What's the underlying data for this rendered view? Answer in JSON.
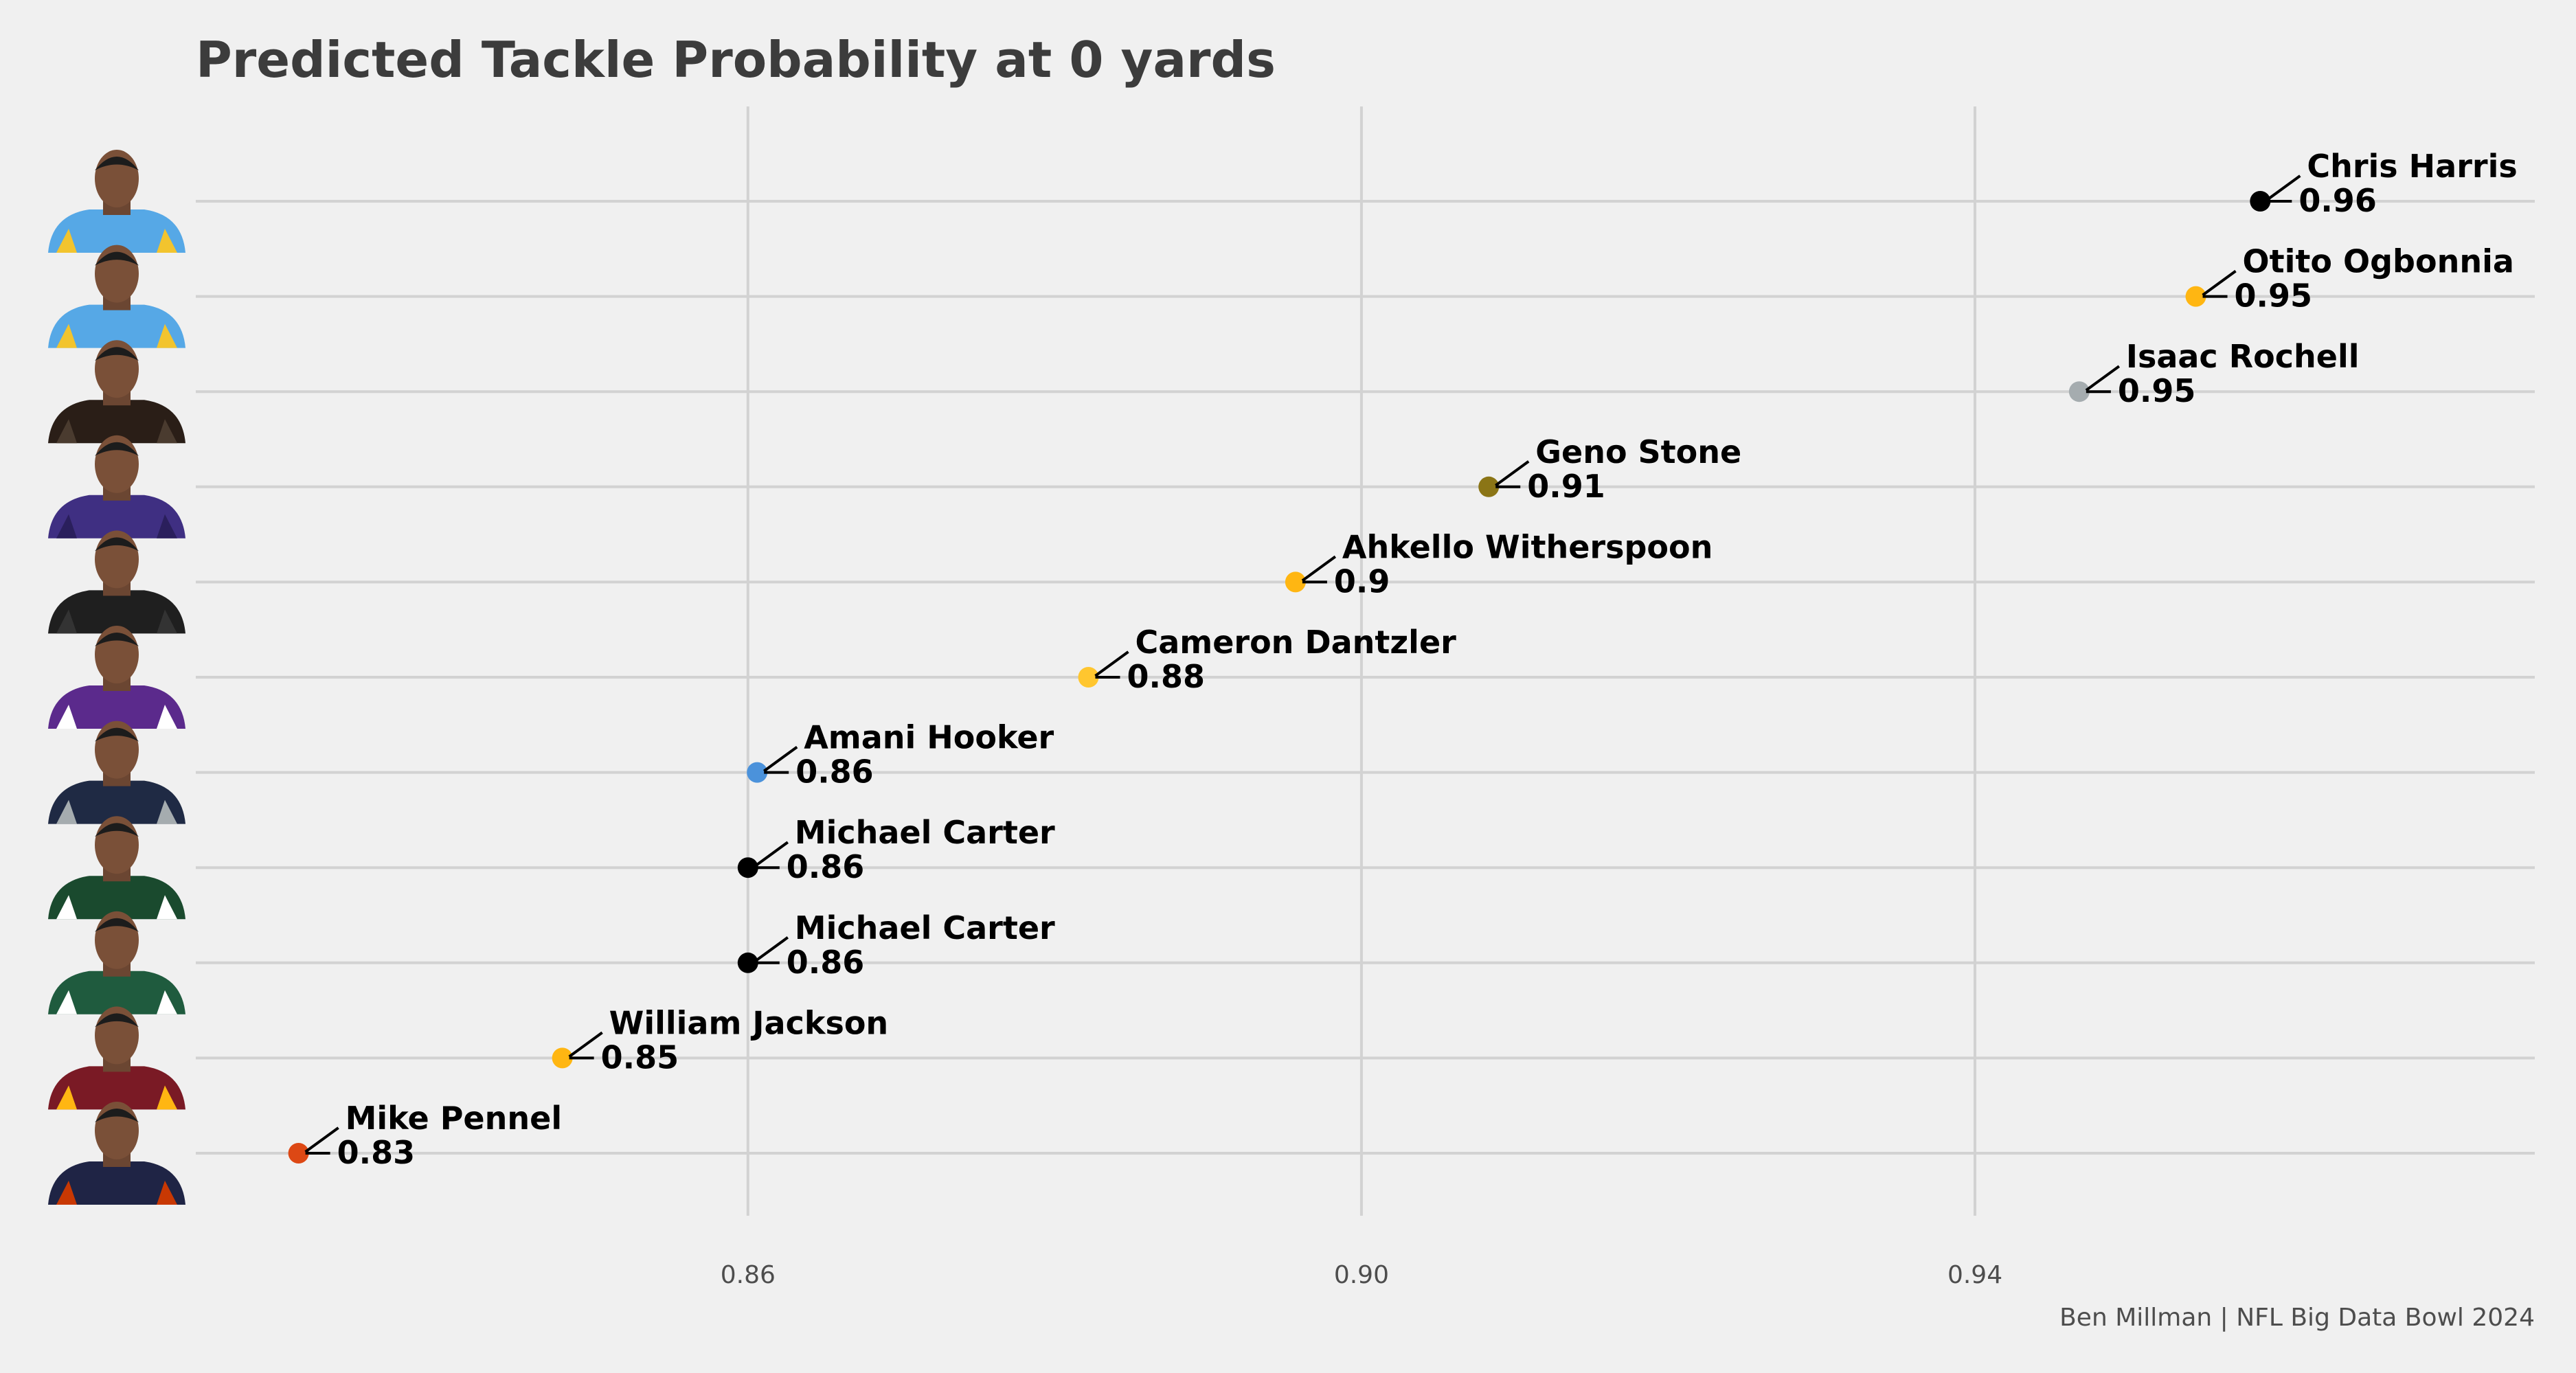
{
  "chart_data": {
    "type": "scatter",
    "title": "Predicted Tackle Probability at 0 yards",
    "xlabel": "",
    "ylabel": "",
    "caption": "Ben Millman | NFL Big Data Bowl 2024",
    "xlim": [
      0.824,
      0.9765
    ],
    "xticks": [
      0.86,
      0.9,
      0.94
    ],
    "xtick_labels": [
      "0.86",
      "0.90",
      "0.94"
    ],
    "grid": true,
    "legend": "none",
    "points": [
      {
        "name": "Chris Harris",
        "x": 0.9586,
        "label": "0.96",
        "color": "#000000",
        "jersey": "#56a8e6",
        "stripe": "#f2c42e"
      },
      {
        "name": "Otito Ogbonnia",
        "x": 0.9544,
        "label": "0.95",
        "color": "#ffb612",
        "jersey": "#56a8e6",
        "stripe": "#f2c42e"
      },
      {
        "name": "Isaac Rochell",
        "x": 0.9468,
        "label": "0.95",
        "color": "#a5acaf",
        "jersey": "#2a1e17",
        "stripe": "#4a3b2f"
      },
      {
        "name": "Geno Stone",
        "x": 0.9083,
        "label": "0.91",
        "color": "#8b7516",
        "jersey": "#3f2f82",
        "stripe": "#2a1f5c"
      },
      {
        "name": "Ahkello Witherspoon",
        "x": 0.8957,
        "label": "0.9",
        "color": "#ffb612",
        "jersey": "#1f1f1f",
        "stripe": "#333333"
      },
      {
        "name": "Cameron Dantzler",
        "x": 0.8822,
        "label": "0.88",
        "color": "#ffc62f",
        "jersey": "#5b2a8c",
        "stripe": "#ffffff"
      },
      {
        "name": "Amani Hooker",
        "x": 0.8606,
        "label": "0.86",
        "color": "#4b92db",
        "jersey": "#1f2a44",
        "stripe": "#a5acaf"
      },
      {
        "name": "Michael Carter",
        "x": 0.86,
        "label": "0.86",
        "color": "#000000",
        "jersey": "#1a4a2e",
        "stripe": "#ffffff"
      },
      {
        "name": "Michael Carter",
        "x": 0.86,
        "label": "0.86",
        "color": "#000000",
        "jersey": "#1f5b3e",
        "stripe": "#ffffff"
      },
      {
        "name": "William Jackson",
        "x": 0.8479,
        "label": "0.85",
        "color": "#ffb612",
        "jersey": "#7a1a25",
        "stripe": "#ffb612"
      },
      {
        "name": "Mike Pennel",
        "x": 0.8307,
        "label": "0.83",
        "color": "#dd4814",
        "jersey": "#1f2445",
        "stripe": "#c83803"
      }
    ]
  }
}
